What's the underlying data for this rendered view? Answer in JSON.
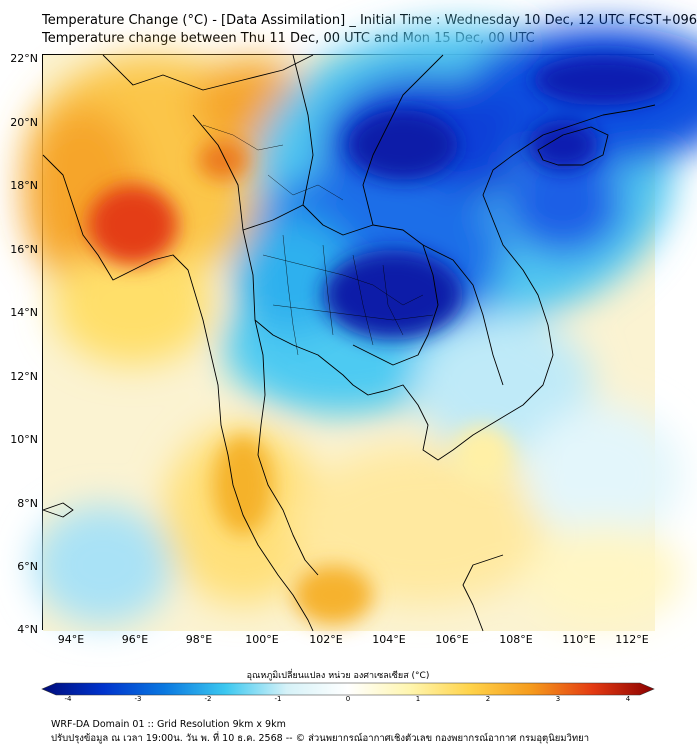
{
  "title_line1": "Temperature Change (°C) - [Data Assimilation] _ Initial Time : Wednesday 10 Dec, 12 UTC FCST+096",
  "title_line2": "Temperature change between Thu 11 Dec, 00 UTC and Mon 15 Dec, 00 UTC",
  "y_ticks": [
    "22°N",
    "20°N",
    "18°N",
    "16°N",
    "14°N",
    "12°N",
    "10°N",
    "8°N",
    "6°N",
    "4°N"
  ],
  "x_ticks": [
    "94°E",
    "96°E",
    "98°E",
    "100°E",
    "102°E",
    "104°E",
    "106°E",
    "108°E",
    "110°E",
    "112°E"
  ],
  "colorbar": {
    "label": "อุณหภูมิเปลี่ยนแปลง หน่วย องศาเซลเซียส (°C)",
    "ticks": [
      "-4",
      "-3",
      "-2",
      "-1",
      "0",
      "1",
      "2",
      "3",
      "4"
    ],
    "range": [
      -4,
      4
    ],
    "colors": [
      "#000c7a",
      "#0033cc",
      "#0a78e0",
      "#3cc8f0",
      "#d6f2f8",
      "#ffffff",
      "#fff6b0",
      "#ffd34a",
      "#f59a1c",
      "#e33a12",
      "#8a0000"
    ]
  },
  "footer_line1": "WRF-DA Domain 01 :: Grid Resolution 9km x 9km",
  "footer_line2": "ปรับปรุงข้อมูล ณ เวลา 19:00น. วัน พ. ที่ 10 ธ.ค. 2568 -- © ส่วนพยากรณ์อากาศเชิงตัวเลข กองพยากรณ์อากาศ กรมอุตุนิยมวิทยา"
}
